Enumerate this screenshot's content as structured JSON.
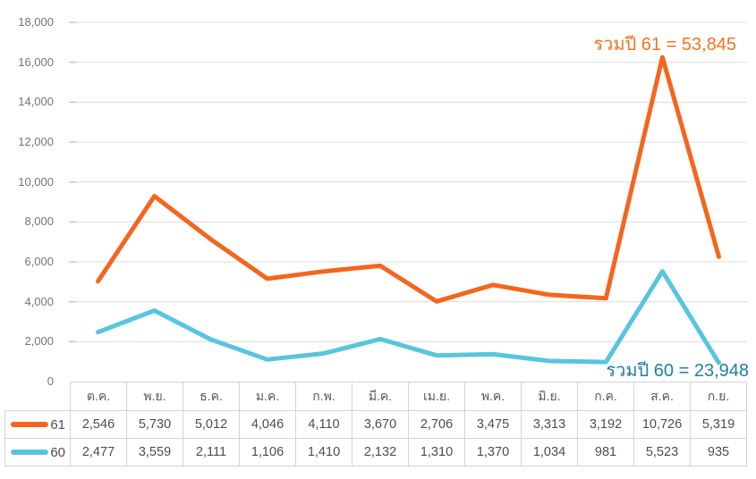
{
  "chart_data": {
    "type": "line",
    "stacked": true,
    "title": "",
    "xlabel": "",
    "ylabel": "",
    "categories": [
      "ต.ค.",
      "พ.ย.",
      "ธ.ค.",
      "ม.ค.",
      "ก.พ.",
      "มี.ค.",
      "เม.ย.",
      "พ.ค.",
      "มิ.ย.",
      "ก.ค.",
      "ส.ค.",
      "ก.ย."
    ],
    "series": [
      {
        "name": "61",
        "color": "#f4661d",
        "values": [
          2546,
          5730,
          5012,
          4046,
          4110,
          3670,
          2706,
          3475,
          3313,
          3192,
          10726,
          5319
        ],
        "total": 53845
      },
      {
        "name": "60",
        "color": "#58c5df",
        "values": [
          2477,
          3559,
          2111,
          1106,
          1410,
          2132,
          1310,
          1370,
          1034,
          981,
          5523,
          935
        ],
        "total": 23948
      }
    ],
    "ylim": [
      0,
      18000
    ],
    "y_step": 2000,
    "y_ticks": [
      "18,000",
      "16,000",
      "14,000",
      "12,000",
      "10,000",
      "8,000",
      "6,000",
      "4,000",
      "2,000",
      "0"
    ],
    "grid": "horizontal",
    "legend_position": "table-left",
    "annotations": [
      {
        "text": "รวมปี 61 = 53,845",
        "color": "#f5731e"
      },
      {
        "text": "รวมปี 60 = 23,948",
        "color": "#217fa0"
      }
    ]
  },
  "table": {
    "headers": [
      "ต.ค.",
      "พ.ย.",
      "ธ.ค.",
      "ม.ค.",
      "ก.พ.",
      "มี.ค.",
      "เม.ย.",
      "พ.ค.",
      "มิ.ย.",
      "ก.ค.",
      "ส.ค.",
      "ก.ย."
    ],
    "rows": [
      {
        "label": "61",
        "swatch_color": "#f4661d",
        "values": [
          "2,546",
          "5,730",
          "5,012",
          "4,046",
          "4,110",
          "3,670",
          "2,706",
          "3,475",
          "3,313",
          "3,192",
          "10,726",
          "5,319"
        ]
      },
      {
        "label": "60",
        "swatch_color": "#58c5df",
        "values": [
          "2,477",
          "3,559",
          "2,111",
          "1,106",
          "1,410",
          "2,132",
          "1,310",
          "1,370",
          "1,034",
          "981",
          "5,523",
          "935"
        ]
      }
    ]
  },
  "colors": {
    "gridline": "#dcdcdc",
    "gridline_tick": "#c6c6c6",
    "axis_text": "#757575",
    "table_border": "#d4d4d4",
    "table_text": "#4d4d4d",
    "header_text": "#595959",
    "background": "#ffffff"
  }
}
